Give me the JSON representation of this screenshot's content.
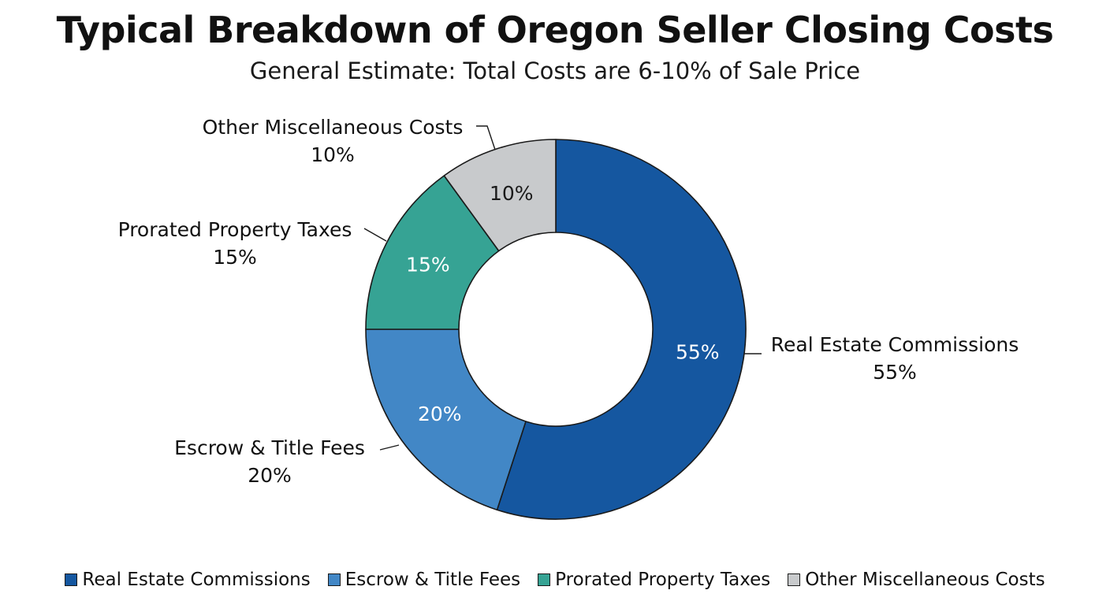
{
  "chart_data": {
    "type": "pie",
    "donut": true,
    "title": "Typical Breakdown of Oregon Seller Closing Costs",
    "subtitle": "General Estimate: Total Costs are 6-10% of Sale Price",
    "categories": [
      "Real Estate Commissions",
      "Escrow & Title Fees",
      "Prorated Property Taxes",
      "Other Miscellaneous Costs"
    ],
    "values": [
      55,
      20,
      15,
      10
    ],
    "inner_labels": [
      "55%",
      "20%",
      "15%",
      "10%"
    ],
    "outer_labels": [
      {
        "name": "Real Estate Commissions",
        "percent": "55%"
      },
      {
        "name": "Escrow & Title Fees",
        "percent": "20%"
      },
      {
        "name": "Prorated Property Taxes",
        "percent": "15%"
      },
      {
        "name": "Other Miscellaneous Costs",
        "percent": "10%"
      }
    ],
    "colors": [
      "#1557a0",
      "#4287c6",
      "#36a394",
      "#c8cacc"
    ],
    "legend": {
      "placement": "bottom",
      "entries": [
        "Real Estate Commissions",
        "Escrow & Title Fees",
        "Prorated Property Taxes",
        "Other Miscellaneous Costs"
      ]
    }
  }
}
